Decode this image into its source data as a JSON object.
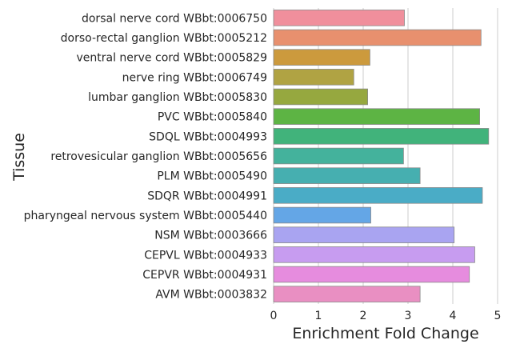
{
  "chart_data": {
    "type": "bar",
    "orientation": "horizontal",
    "xlabel": "Enrichment Fold Change",
    "ylabel": "Tissue",
    "xlim": [
      0,
      5
    ],
    "xticks": [
      0,
      1,
      2,
      3,
      4,
      5
    ],
    "grid": "vertical",
    "categories": [
      "dorsal nerve cord WBbt:0006750",
      "dorso-rectal ganglion WBbt:0005212",
      "ventral nerve cord WBbt:0005829",
      "nerve ring WBbt:0006749",
      "lumbar ganglion WBbt:0005830",
      "PVC WBbt:0005840",
      "SDQL WBbt:0004993",
      "retrovesicular ganglion WBbt:0005656",
      "PLM WBbt:0005490",
      "SDQR WBbt:0004991",
      "pharyngeal nervous system WBbt:0005440",
      "NSM WBbt:0003666",
      "CEPVL WBbt:0004933",
      "CEPVR WBbt:0004931",
      "AVM WBbt:0003832"
    ],
    "values": [
      2.92,
      4.63,
      2.15,
      1.79,
      2.1,
      4.6,
      4.8,
      2.9,
      3.27,
      4.66,
      2.17,
      4.03,
      4.49,
      4.37,
      3.27
    ],
    "colors": [
      "#f08f9c",
      "#e8906e",
      "#cc9a3d",
      "#b0a343",
      "#96a83f",
      "#5db444",
      "#41b37b",
      "#44b29c",
      "#46afb0",
      "#4aacc6",
      "#64a6e6",
      "#a9a4f1",
      "#c79cf0",
      "#e68cde",
      "#e98fc2"
    ]
  }
}
